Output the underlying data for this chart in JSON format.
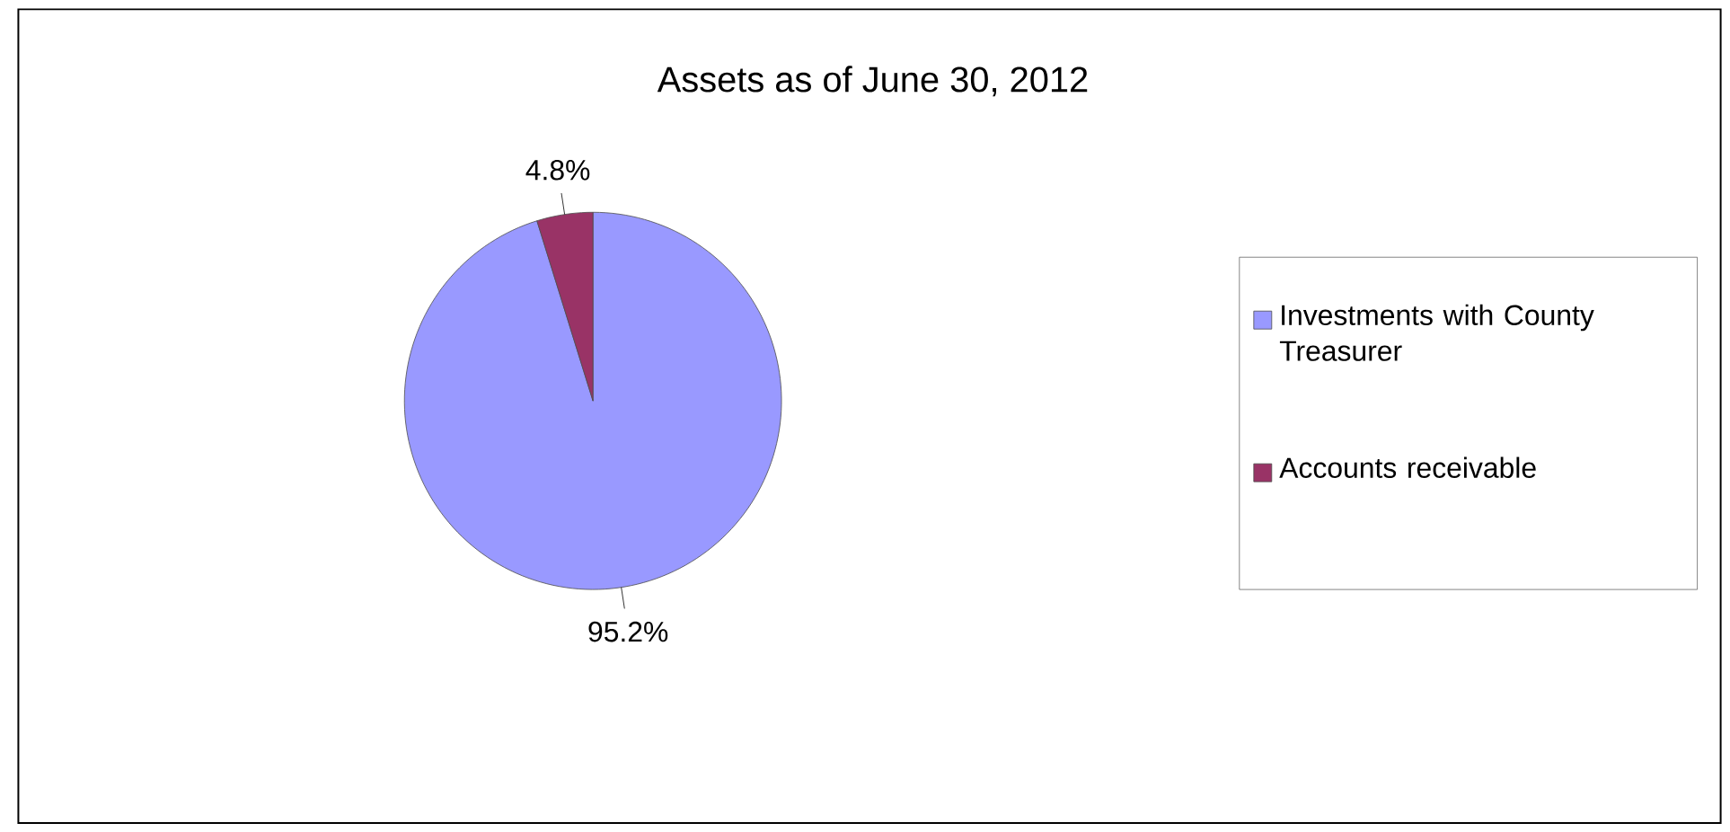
{
  "chart_data": {
    "type": "pie",
    "title": "Assets as of June 30, 2012",
    "categories": [
      "Investments with County Treasurer",
      "Accounts receivable"
    ],
    "values": [
      95.2,
      4.8
    ],
    "colors": [
      "#9999ff",
      "#993366"
    ],
    "value_labels": [
      "95.2%",
      "4.8%"
    ],
    "legend": "right"
  }
}
